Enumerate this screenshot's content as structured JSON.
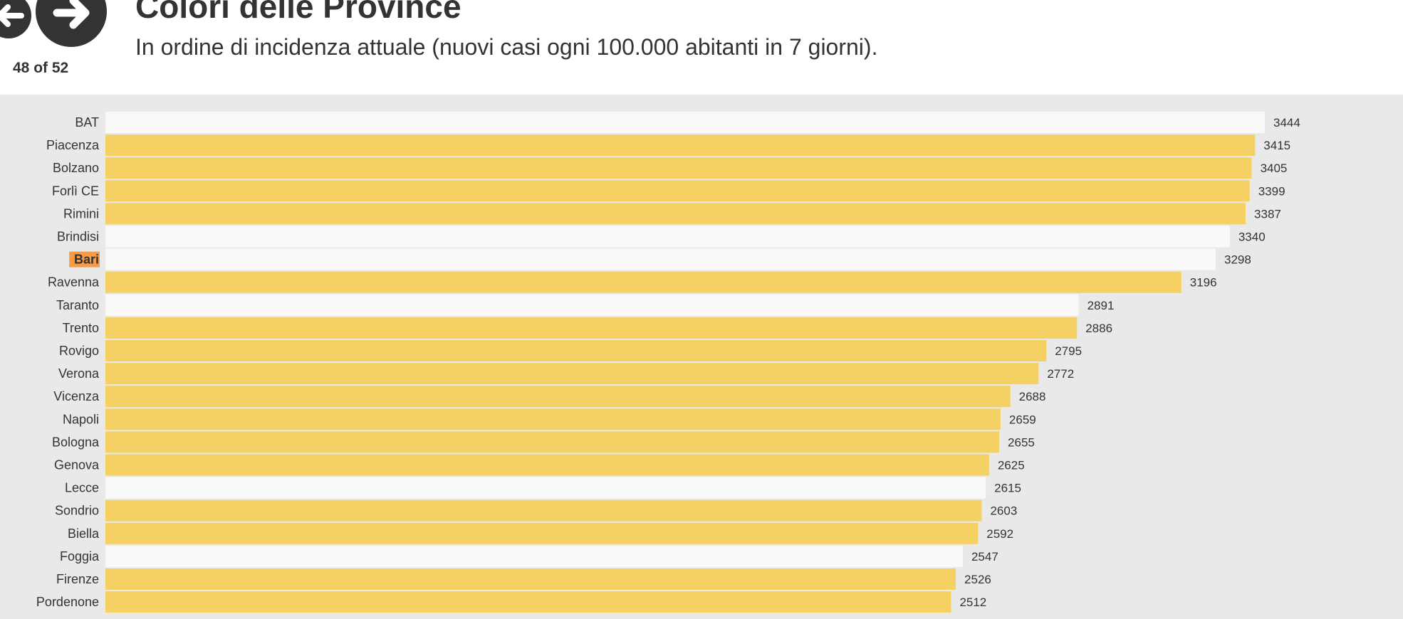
{
  "header": {
    "title": "Colori delle Province",
    "subtitle": "In ordine di incidenza attuale (nuovi casi ogni 100.000 abitanti in 7 giorni).",
    "counter": "48 of 52",
    "prev_icon": "arrow-left-icon",
    "next_icon": "arrow-right-icon"
  },
  "colors": {
    "yellow": "#f5d164",
    "white": "#f9f9f9",
    "highlight": "#f59b4a",
    "background": "#e9e9e9",
    "text": "#333333"
  },
  "chart_data": {
    "type": "bar",
    "orientation": "horizontal",
    "title": "Colori delle Province",
    "subtitle": "In ordine di incidenza attuale (nuovi casi ogni 100.000 abitanti in 7 giorni).",
    "highlight": "Bari",
    "categories": [
      "BAT",
      "Piacenza",
      "Bolzano",
      "Forlì CE",
      "Rimini",
      "Brindisi",
      "Bari",
      "Ravenna",
      "Taranto",
      "Trento",
      "Rovigo",
      "Verona",
      "Vicenza",
      "Napoli",
      "Bologna",
      "Genova",
      "Lecce",
      "Sondrio",
      "Biella",
      "Foggia",
      "Firenze",
      "Pordenone"
    ],
    "values": [
      3444,
      3415,
      3405,
      3399,
      3387,
      3340,
      3298,
      3196,
      2891,
      2886,
      2795,
      2772,
      2688,
      2659,
      2655,
      2625,
      2615,
      2603,
      2592,
      2547,
      2526,
      2512
    ],
    "bar_colors": [
      "white",
      "yellow",
      "yellow",
      "yellow",
      "yellow",
      "white",
      "white",
      "yellow",
      "white",
      "yellow",
      "yellow",
      "yellow",
      "yellow",
      "yellow",
      "yellow",
      "yellow",
      "white",
      "yellow",
      "yellow",
      "white",
      "yellow",
      "yellow"
    ],
    "xlim": [
      0,
      3444
    ]
  }
}
